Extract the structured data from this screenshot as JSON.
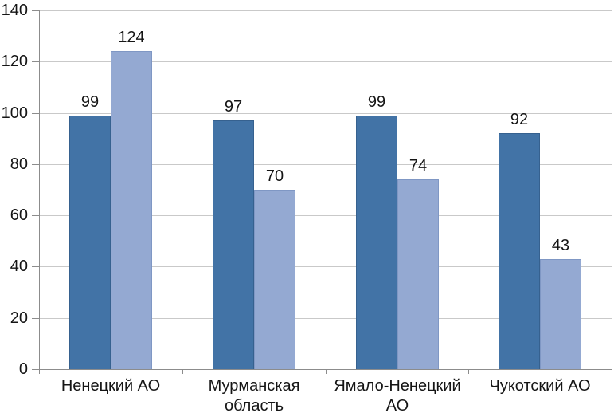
{
  "chart_data": {
    "type": "bar",
    "title": "",
    "xlabel": "",
    "ylabel": "",
    "categories": [
      "Ненецкий АО",
      "Мурманская область",
      "Ямало-Ненецкий АО",
      "Чукотский АО"
    ],
    "series": [
      {
        "name": "series-1-dark-blue",
        "color": "#4273a6",
        "border_color": "#36618f",
        "values": [
          99,
          97,
          99,
          92
        ]
      },
      {
        "name": "series-2-light-blue",
        "color": "#94a9d2",
        "border_color": "#7f97c4",
        "values": [
          124,
          70,
          74,
          43
        ]
      }
    ],
    "data_labels": [
      [
        "99",
        "97",
        "99",
        "92"
      ],
      [
        "124",
        "70",
        "74",
        "43"
      ]
    ],
    "ylim": [
      0,
      140
    ],
    "ytick_step": 20,
    "yticks": [
      "0",
      "20",
      "40",
      "60",
      "80",
      "100",
      "120",
      "140"
    ],
    "grid": true,
    "legend_position": "none"
  },
  "colors": {
    "background": "#ffffff",
    "gridline": "#c9c9c9",
    "axis": "#8c8c8c",
    "text": "#151515"
  }
}
